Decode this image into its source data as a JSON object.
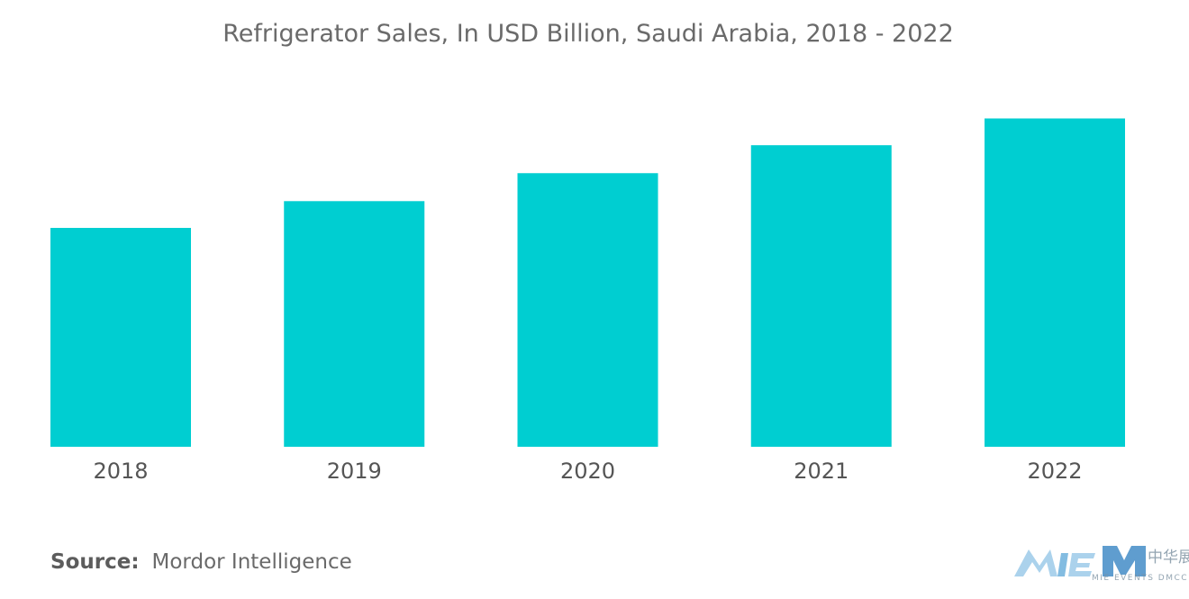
{
  "chart_data": {
    "type": "bar",
    "title": "Refrigerator Sales, In USD Billion, Saudi Arabia, 2018 - 2022",
    "categories": [
      "2018",
      "2019",
      "2020",
      "2021",
      "2022"
    ],
    "values": [
      1.8,
      2.02,
      2.25,
      2.48,
      2.7
    ],
    "ylim": [
      0,
      3.0
    ],
    "bar_color": "#00ced1",
    "grid": false,
    "y_axis_visible": false
  },
  "source": {
    "label": "Source:",
    "text": "Mordor Intelligence"
  },
  "logo": {
    "icon": "mie-events-logo",
    "text": "中华展览集团",
    "subtext": "MIE EVENTS DMCC"
  },
  "colors": {
    "bar": "#00ced1",
    "text": "#6a6a6a",
    "logo_blue": "#2a7dbf",
    "logo_light": "#8fc3e6"
  }
}
